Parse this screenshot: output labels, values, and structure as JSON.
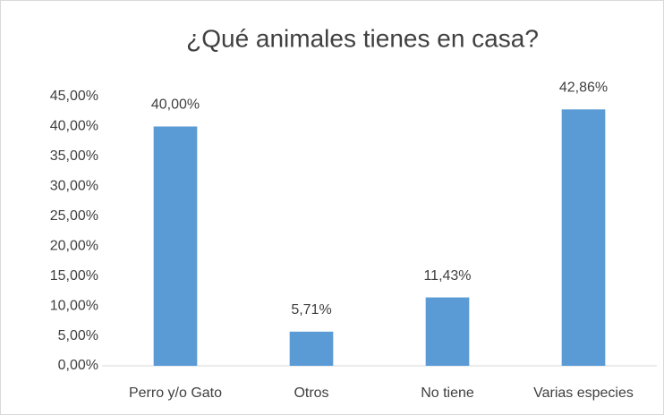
{
  "chart_data": {
    "type": "bar",
    "title": "¿Qué animales tienes en casa?",
    "categories": [
      "Perro y/o Gato",
      "Otros",
      "No tiene",
      "Varias especies"
    ],
    "values": [
      40,
      5.71,
      11.43,
      42.86
    ],
    "value_labels": [
      "40,00%",
      "5,71%",
      "11,43%",
      "42,86%"
    ],
    "color": "#5b9bd5",
    "ylim": [
      0,
      45
    ],
    "yticks": [
      {
        "value": 0,
        "label": "0,00%"
      },
      {
        "value": 5,
        "label": "5,00%"
      },
      {
        "value": 10,
        "label": "10,00%"
      },
      {
        "value": 15,
        "label": "15,00%"
      },
      {
        "value": 20,
        "label": "20,00%"
      },
      {
        "value": 25,
        "label": "25,00%"
      },
      {
        "value": 30,
        "label": "30,00%"
      },
      {
        "value": 35,
        "label": "35,00%"
      },
      {
        "value": 40,
        "label": "40,00%"
      },
      {
        "value": 45,
        "label": "45,00%"
      }
    ],
    "grid": false
  }
}
